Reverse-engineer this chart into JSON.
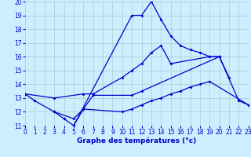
{
  "xlabel": "Graphe des températures (°c)",
  "background_color": "#cceeff",
  "grid_color": "#aacccc",
  "line_color": "#0000cc",
  "ylim": [
    11,
    20
  ],
  "xlim": [
    0,
    23
  ],
  "yticks": [
    11,
    12,
    13,
    14,
    15,
    16,
    17,
    18,
    19,
    20
  ],
  "xticks": [
    0,
    1,
    2,
    3,
    4,
    5,
    6,
    7,
    8,
    9,
    10,
    11,
    12,
    13,
    14,
    15,
    16,
    17,
    18,
    19,
    20,
    21,
    22,
    23
  ],
  "s1_x": [
    0,
    1,
    3,
    4,
    5,
    6,
    7,
    11,
    12,
    20,
    22,
    23
  ],
  "s1_y": [
    13.3,
    12.8,
    12.0,
    11.5,
    11.0,
    12.2,
    13.2,
    13.2,
    13.5,
    16.0,
    12.8,
    12.5
  ],
  "s2_x": [
    5,
    11,
    12,
    13,
    14,
    15,
    16,
    17,
    18,
    19,
    20
  ],
  "s2_y": [
    11.0,
    19.0,
    19.0,
    20.0,
    18.7,
    17.5,
    16.8,
    16.5,
    16.3,
    16.0,
    16.0
  ],
  "s3_x": [
    0,
    3,
    6,
    7,
    10,
    11,
    12,
    13,
    14,
    15,
    19,
    20,
    21
  ],
  "s3_y": [
    13.3,
    13.0,
    13.3,
    13.3,
    14.5,
    15.0,
    15.5,
    16.3,
    16.8,
    15.5,
    16.0,
    16.0,
    14.5
  ],
  "s4_x": [
    3,
    5,
    6,
    10,
    11,
    12,
    13,
    14,
    15,
    16,
    17,
    18,
    19,
    23
  ],
  "s4_y": [
    12.0,
    11.5,
    12.2,
    12.0,
    12.2,
    12.5,
    12.8,
    13.0,
    13.3,
    13.5,
    13.8,
    14.0,
    14.2,
    12.5
  ],
  "marker": "D",
  "markersize": 2.0,
  "linewidth": 0.9,
  "tick_fontsize": 5.5,
  "xlabel_fontsize": 6.5
}
